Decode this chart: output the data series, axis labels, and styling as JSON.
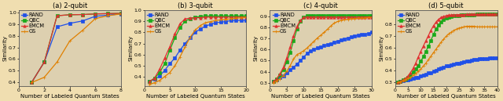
{
  "plots": [
    {
      "title": "(a) 2-qubit",
      "xlabel": "Number of Labeled Quantum States",
      "ylabel": "Similarity",
      "xlim": [
        0,
        8
      ],
      "ylim": [
        0.37,
        1.02
      ],
      "xticks": [
        0,
        2,
        4,
        6,
        8
      ],
      "yticks": [
        0.4,
        0.5,
        0.6,
        0.7,
        0.8,
        0.9,
        1.0
      ],
      "series": {
        "RAND": {
          "color": "#2050e8",
          "marker": "s",
          "x": [
            1,
            2,
            3,
            4,
            5,
            6,
            7,
            8
          ],
          "y": [
            0.4,
            0.575,
            0.875,
            0.905,
            0.925,
            0.965,
            0.975,
            0.985
          ]
        },
        "QBC": {
          "color": "#1aaa1a",
          "marker": "s",
          "x": [
            1,
            2,
            3,
            4,
            5,
            6,
            7,
            8
          ],
          "y": [
            0.4,
            0.575,
            0.97,
            0.978,
            0.98,
            0.985,
            0.988,
            0.99
          ]
        },
        "EMCM": {
          "color": "#e03030",
          "marker": "^",
          "x": [
            1,
            2,
            3,
            4,
            5,
            6,
            7,
            8
          ],
          "y": [
            0.4,
            0.575,
            0.97,
            0.978,
            0.98,
            0.985,
            0.988,
            0.99
          ]
        },
        "GS": {
          "color": "#e08000",
          "marker": "+",
          "x": [
            1,
            2,
            3,
            4,
            5,
            6,
            7,
            8
          ],
          "y": [
            0.4,
            0.445,
            0.575,
            0.755,
            0.845,
            0.945,
            0.97,
            0.985
          ]
        }
      }
    },
    {
      "title": "(b) 3-qubit",
      "xlabel": "Number of Labeled Quantum States",
      "ylabel": "Similarity",
      "xlim": [
        0,
        20
      ],
      "ylim": [
        0.32,
        1.0
      ],
      "xticks": [
        0,
        5,
        10,
        15,
        20
      ],
      "yticks": [
        0.4,
        0.5,
        0.6,
        0.7,
        0.8,
        0.9,
        1.0
      ],
      "series": {
        "RAND": {
          "color": "#2050e8",
          "marker": "s",
          "x": [
            1,
            2,
            3,
            4,
            5,
            6,
            7,
            8,
            9,
            10,
            11,
            12,
            13,
            14,
            15,
            16,
            17,
            18,
            19,
            20
          ],
          "y": [
            0.36,
            0.38,
            0.41,
            0.46,
            0.52,
            0.57,
            0.64,
            0.7,
            0.75,
            0.8,
            0.83,
            0.855,
            0.87,
            0.885,
            0.89,
            0.895,
            0.905,
            0.905,
            0.905,
            0.905
          ]
        },
        "QBC": {
          "color": "#1aaa1a",
          "marker": "s",
          "x": [
            1,
            2,
            3,
            4,
            5,
            6,
            7,
            8,
            9,
            10,
            11,
            12,
            13,
            14,
            15,
            16,
            17,
            18,
            19,
            20
          ],
          "y": [
            0.36,
            0.39,
            0.44,
            0.52,
            0.64,
            0.75,
            0.84,
            0.9,
            0.92,
            0.935,
            0.94,
            0.945,
            0.945,
            0.945,
            0.945,
            0.945,
            0.945,
            0.945,
            0.945,
            0.945
          ]
        },
        "EMCM": {
          "color": "#e03030",
          "marker": "^",
          "x": [
            1,
            2,
            3,
            4,
            5,
            6,
            7,
            8,
            9,
            10,
            11,
            12,
            13,
            14,
            15,
            16,
            17,
            18,
            19,
            20
          ],
          "y": [
            0.36,
            0.39,
            0.47,
            0.57,
            0.67,
            0.785,
            0.875,
            0.92,
            0.925,
            0.93,
            0.93,
            0.935,
            0.935,
            0.935,
            0.935,
            0.935,
            0.935,
            0.935,
            0.935,
            0.935
          ]
        },
        "GS": {
          "color": "#e08000",
          "marker": "+",
          "x": [
            1,
            2,
            3,
            4,
            5,
            6,
            7,
            8,
            9,
            10,
            11,
            12,
            13,
            14,
            15,
            16,
            17,
            18,
            19,
            20
          ],
          "y": [
            0.335,
            0.35,
            0.37,
            0.405,
            0.44,
            0.5,
            0.58,
            0.67,
            0.755,
            0.82,
            0.86,
            0.885,
            0.895,
            0.905,
            0.91,
            0.915,
            0.92,
            0.925,
            0.93,
            0.935
          ]
        }
      }
    },
    {
      "title": "(c) 4-qubit",
      "xlabel": "Number of Labeled Quantum States",
      "ylabel": "Similarity",
      "xlim": [
        0,
        30
      ],
      "ylim": [
        0.27,
        0.96
      ],
      "xticks": [
        0,
        5,
        10,
        15,
        20,
        25,
        30
      ],
      "yticks": [
        0.3,
        0.4,
        0.5,
        0.6,
        0.7,
        0.8,
        0.9
      ],
      "series": {
        "RAND": {
          "color": "#2050e8",
          "marker": "s",
          "x": [
            1,
            2,
            3,
            4,
            5,
            6,
            7,
            8,
            9,
            10,
            11,
            12,
            13,
            14,
            15,
            16,
            17,
            18,
            19,
            20,
            21,
            22,
            23,
            24,
            25,
            26,
            27,
            28,
            29,
            30
          ],
          "y": [
            0.31,
            0.325,
            0.345,
            0.365,
            0.39,
            0.415,
            0.44,
            0.47,
            0.5,
            0.535,
            0.565,
            0.59,
            0.6,
            0.615,
            0.625,
            0.635,
            0.645,
            0.655,
            0.665,
            0.675,
            0.685,
            0.695,
            0.705,
            0.715,
            0.72,
            0.73,
            0.735,
            0.74,
            0.745,
            0.755
          ]
        },
        "QBC": {
          "color": "#1aaa1a",
          "marker": "s",
          "x": [
            1,
            2,
            3,
            4,
            5,
            6,
            7,
            8,
            9,
            10,
            11,
            12,
            13,
            14,
            15,
            16,
            17,
            18,
            19,
            20,
            21,
            22,
            23,
            24,
            25,
            26,
            27,
            28,
            29,
            30
          ],
          "y": [
            0.31,
            0.335,
            0.37,
            0.42,
            0.49,
            0.575,
            0.68,
            0.785,
            0.855,
            0.895,
            0.905,
            0.91,
            0.91,
            0.91,
            0.91,
            0.91,
            0.91,
            0.91,
            0.91,
            0.91,
            0.91,
            0.91,
            0.91,
            0.91,
            0.91,
            0.91,
            0.91,
            0.91,
            0.91,
            0.91
          ]
        },
        "EMCM": {
          "color": "#e03030",
          "marker": "^",
          "x": [
            1,
            2,
            3,
            4,
            5,
            6,
            7,
            8,
            9,
            10,
            11,
            12,
            13,
            14,
            15,
            16,
            17,
            18,
            19,
            20,
            21,
            22,
            23,
            24,
            25,
            26,
            27,
            28,
            29,
            30
          ],
          "y": [
            0.31,
            0.335,
            0.38,
            0.44,
            0.525,
            0.625,
            0.725,
            0.81,
            0.865,
            0.89,
            0.895,
            0.895,
            0.895,
            0.895,
            0.895,
            0.895,
            0.895,
            0.895,
            0.895,
            0.895,
            0.895,
            0.895,
            0.895,
            0.895,
            0.895,
            0.895,
            0.895,
            0.895,
            0.895,
            0.895
          ]
        },
        "GS": {
          "color": "#e08000",
          "marker": "+",
          "x": [
            1,
            2,
            3,
            4,
            5,
            6,
            7,
            8,
            9,
            10,
            11,
            12,
            13,
            14,
            15,
            16,
            17,
            18,
            19,
            20,
            21,
            22,
            23,
            24,
            25,
            26,
            27,
            28,
            29,
            30
          ],
          "y": [
            0.3,
            0.315,
            0.335,
            0.365,
            0.405,
            0.455,
            0.515,
            0.555,
            0.57,
            0.59,
            0.615,
            0.645,
            0.675,
            0.705,
            0.73,
            0.755,
            0.785,
            0.815,
            0.84,
            0.855,
            0.865,
            0.87,
            0.875,
            0.88,
            0.88,
            0.885,
            0.885,
            0.885,
            0.89,
            0.89
          ]
        }
      }
    },
    {
      "title": "(d) 5-qubit",
      "xlabel": "Number of Labeled Quantum States",
      "ylabel": "Similarity",
      "xlim": [
        0,
        40
      ],
      "ylim": [
        0.27,
        0.92
      ],
      "xticks": [
        0,
        5,
        10,
        15,
        20,
        25,
        30,
        35,
        40
      ],
      "yticks": [
        0.3,
        0.4,
        0.5,
        0.6,
        0.7,
        0.8
      ],
      "series": {
        "RAND": {
          "color": "#2050e8",
          "marker": "s",
          "x": [
            1,
            2,
            3,
            4,
            5,
            6,
            7,
            8,
            9,
            10,
            11,
            12,
            13,
            14,
            15,
            16,
            17,
            18,
            19,
            20,
            21,
            22,
            23,
            24,
            25,
            26,
            27,
            28,
            29,
            30,
            31,
            32,
            33,
            34,
            35,
            36,
            37,
            38,
            39,
            40
          ],
          "y": [
            0.3,
            0.31,
            0.315,
            0.32,
            0.325,
            0.33,
            0.335,
            0.34,
            0.345,
            0.355,
            0.365,
            0.37,
            0.38,
            0.385,
            0.395,
            0.405,
            0.415,
            0.42,
            0.43,
            0.44,
            0.445,
            0.45,
            0.455,
            0.46,
            0.465,
            0.47,
            0.475,
            0.48,
            0.485,
            0.49,
            0.495,
            0.495,
            0.5,
            0.5,
            0.505,
            0.505,
            0.51,
            0.51,
            0.51,
            0.51
          ]
        },
        "QBC": {
          "color": "#1aaa1a",
          "marker": "s",
          "x": [
            1,
            2,
            3,
            4,
            5,
            6,
            7,
            8,
            9,
            10,
            11,
            12,
            13,
            14,
            15,
            16,
            17,
            18,
            19,
            20,
            21,
            22,
            23,
            24,
            25,
            26,
            27,
            28,
            29,
            30,
            31,
            32,
            33,
            34,
            35,
            36,
            37,
            38,
            39,
            40
          ],
          "y": [
            0.3,
            0.31,
            0.32,
            0.33,
            0.345,
            0.365,
            0.39,
            0.415,
            0.445,
            0.48,
            0.52,
            0.565,
            0.61,
            0.66,
            0.71,
            0.755,
            0.79,
            0.815,
            0.835,
            0.85,
            0.86,
            0.865,
            0.87,
            0.872,
            0.873,
            0.875,
            0.876,
            0.877,
            0.878,
            0.879,
            0.88,
            0.881,
            0.882,
            0.883,
            0.884,
            0.885,
            0.885,
            0.885,
            0.885,
            0.885
          ]
        },
        "EMCM": {
          "color": "#e03030",
          "marker": "^",
          "x": [
            1,
            2,
            3,
            4,
            5,
            6,
            7,
            8,
            9,
            10,
            11,
            12,
            13,
            14,
            15,
            16,
            17,
            18,
            19,
            20,
            21,
            22,
            23,
            24,
            25,
            26,
            27,
            28,
            29,
            30,
            31,
            32,
            33,
            34,
            35,
            36,
            37,
            38,
            39,
            40
          ],
          "y": [
            0.3,
            0.31,
            0.32,
            0.335,
            0.355,
            0.385,
            0.42,
            0.465,
            0.515,
            0.565,
            0.61,
            0.655,
            0.7,
            0.745,
            0.785,
            0.815,
            0.84,
            0.855,
            0.865,
            0.87,
            0.875,
            0.876,
            0.877,
            0.878,
            0.879,
            0.88,
            0.88,
            0.881,
            0.881,
            0.882,
            0.882,
            0.882,
            0.882,
            0.883,
            0.883,
            0.883,
            0.884,
            0.884,
            0.884,
            0.884
          ]
        },
        "GS": {
          "color": "#e08000",
          "marker": "+",
          "x": [
            1,
            2,
            3,
            4,
            5,
            6,
            7,
            8,
            9,
            10,
            11,
            12,
            13,
            14,
            15,
            16,
            17,
            18,
            19,
            20,
            21,
            22,
            23,
            24,
            25,
            26,
            27,
            28,
            29,
            30,
            31,
            32,
            33,
            34,
            35,
            36,
            37,
            38,
            39,
            40
          ],
          "y": [
            0.3,
            0.305,
            0.315,
            0.325,
            0.335,
            0.345,
            0.36,
            0.375,
            0.395,
            0.415,
            0.44,
            0.465,
            0.495,
            0.525,
            0.555,
            0.585,
            0.615,
            0.645,
            0.67,
            0.695,
            0.715,
            0.73,
            0.745,
            0.755,
            0.765,
            0.77,
            0.775,
            0.78,
            0.78,
            0.78,
            0.78,
            0.775,
            0.775,
            0.775,
            0.775,
            0.775,
            0.775,
            0.775,
            0.775,
            0.775
          ]
        }
      }
    }
  ],
  "legend_order": [
    "RAND",
    "QBC",
    "EMCM",
    "GS"
  ],
  "markersize": 2.5,
  "linewidth": 0.9,
  "fontsize_title": 6.0,
  "fontsize_label": 5.0,
  "fontsize_tick": 4.5,
  "fontsize_legend": 4.8,
  "background_color": "#f0deb0",
  "axes_bg": "#ddd0b0"
}
